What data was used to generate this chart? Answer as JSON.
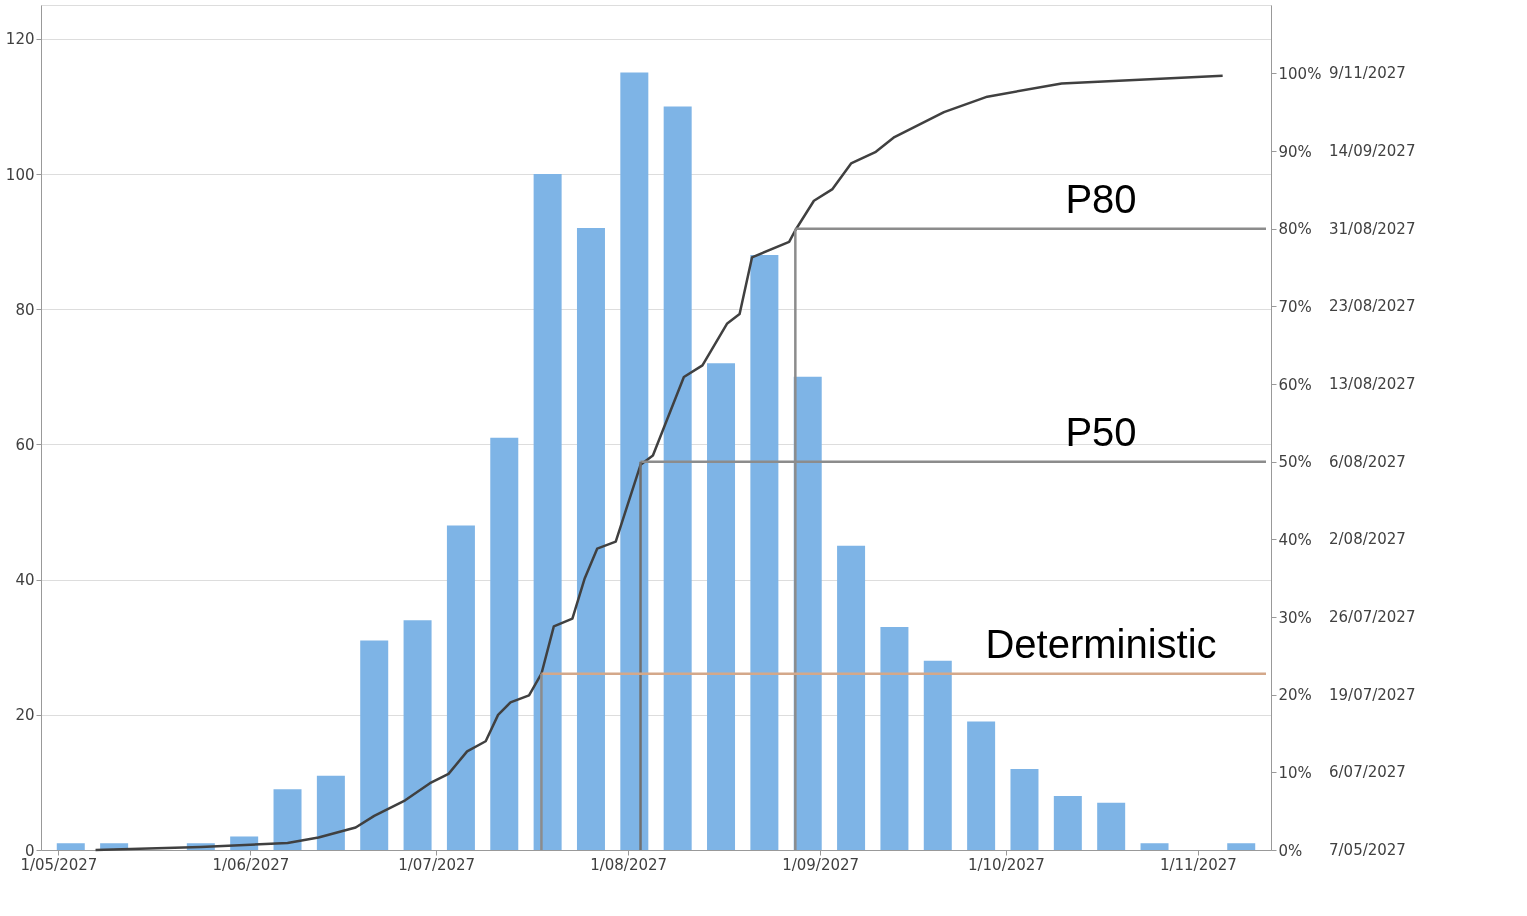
{
  "chart_data": {
    "type": "bar",
    "x": [
      "2027-05-03",
      "2027-05-10",
      "2027-05-24",
      "2027-05-31",
      "2027-06-07",
      "2027-06-14",
      "2027-06-21",
      "2027-06-28",
      "2027-07-05",
      "2027-07-12",
      "2027-07-19",
      "2027-07-26",
      "2027-08-02",
      "2027-08-09",
      "2027-08-16",
      "2027-08-23",
      "2027-08-30",
      "2027-09-06",
      "2027-09-13",
      "2027-09-20",
      "2027-09-27",
      "2027-10-04",
      "2027-10-11",
      "2027-10-18",
      "2027-10-25",
      "2027-11-08"
    ],
    "series": [
      {
        "color": "#7eb4e6",
        "values": [
          1,
          1,
          1,
          2,
          9,
          11,
          31,
          34,
          48,
          61,
          100,
          92,
          115,
          110,
          72,
          88,
          70,
          45,
          33,
          28,
          19,
          12,
          8,
          7,
          1,
          1
        ]
      },
      {
        "type": "line",
        "axis": "y2",
        "color": "#404040",
        "x": [
          "2027-05-07",
          "2027-05-24",
          "2027-06-07",
          "2027-06-12",
          "2027-06-18",
          "2027-06-21",
          "2027-06-26",
          "2027-06-30",
          "2027-07-03",
          "2027-07-06",
          "2027-07-09",
          "2027-07-11",
          "2027-07-13",
          "2027-07-16",
          "2027-07-18",
          "2027-07-20",
          "2027-07-23",
          "2027-07-25",
          "2027-07-27",
          "2027-07-30",
          "2027-08-03",
          "2027-08-05",
          "2027-08-10",
          "2027-08-13",
          "2027-08-17",
          "2027-08-19",
          "2027-08-21",
          "2027-08-27",
          "2027-08-28",
          "2027-08-31",
          "2027-09-03",
          "2027-09-06",
          "2027-09-10",
          "2027-09-13",
          "2027-09-21",
          "2027-09-28",
          "2027-10-10",
          "2027-11-05"
        ],
        "values": [
          0,
          0.4,
          0.9,
          1.6,
          2.9,
          4.4,
          6.4,
          8.6,
          9.8,
          12.7,
          14,
          17.4,
          19,
          19.9,
          22.7,
          28.8,
          29.8,
          35,
          38.8,
          39.7,
          49.6,
          50.8,
          60.9,
          62.4,
          67.8,
          69,
          76.3,
          78.3,
          79.8,
          83.6,
          85.1,
          88.4,
          89.9,
          91.8,
          95,
          97,
          98.7,
          99.7
        ]
      }
    ],
    "ylim": [
      0,
      125
    ],
    "yticks": [
      0,
      20,
      40,
      60,
      80,
      100,
      120
    ],
    "y2lim": [
      0,
      108.8
    ],
    "y2ticks": [
      {
        "value": 0,
        "label": "0%"
      },
      {
        "value": 10,
        "label": "10%"
      },
      {
        "value": 20,
        "label": "20%"
      },
      {
        "value": 30,
        "label": "30%"
      },
      {
        "value": 40,
        "label": "40%"
      },
      {
        "value": 50,
        "label": "50%"
      },
      {
        "value": 60,
        "label": "60%"
      },
      {
        "value": 70,
        "label": "70%"
      },
      {
        "value": 80,
        "label": "80%"
      },
      {
        "value": 90,
        "label": "90%"
      },
      {
        "value": 100,
        "label": "100%"
      }
    ],
    "annotations": [
      "7/05/2027",
      "6/07/2027",
      "19/07/2027",
      "26/07/2027",
      "2/08/2027",
      "6/08/2027",
      "13/08/2027",
      "23/08/2027",
      "31/08/2027",
      "14/09/2027",
      "9/11/2027"
    ],
    "xlim": [
      "2027-04-29",
      "2027-11-12"
    ],
    "xticks": [
      {
        "value": "2027-05-01",
        "label": "1/05/2027"
      },
      {
        "value": "2027-06-01",
        "label": "1/06/2027"
      },
      {
        "value": "2027-07-01",
        "label": "1/07/2027"
      },
      {
        "value": "2027-08-01",
        "label": "1/08/2027"
      },
      {
        "value": "2027-09-01",
        "label": "1/09/2027"
      },
      {
        "value": "2027-10-01",
        "label": "1/10/2027"
      },
      {
        "value": "2027-11-01",
        "label": "1/11/2027"
      }
    ],
    "ref_lines": [
      {
        "axis": "y2",
        "value": 80,
        "label": "P80",
        "color": "#8c8c8c"
      },
      {
        "axis": "x",
        "value": "2027-08-28",
        "color": "#8c8c8c"
      },
      {
        "axis": "y2",
        "value": 50,
        "label": "P50",
        "color": "#8c8c8c"
      },
      {
        "axis": "x",
        "value": "2027-08-03",
        "color": "#707070"
      },
      {
        "axis": "y2",
        "value": 22.7,
        "label": "Deterministic",
        "color": "#d4a88a"
      },
      {
        "axis": "x",
        "value": "2027-07-18",
        "color": "#8c8c8c"
      }
    ],
    "grid": "y",
    "legend": false,
    "marker": "none",
    "line_style": "solid"
  }
}
